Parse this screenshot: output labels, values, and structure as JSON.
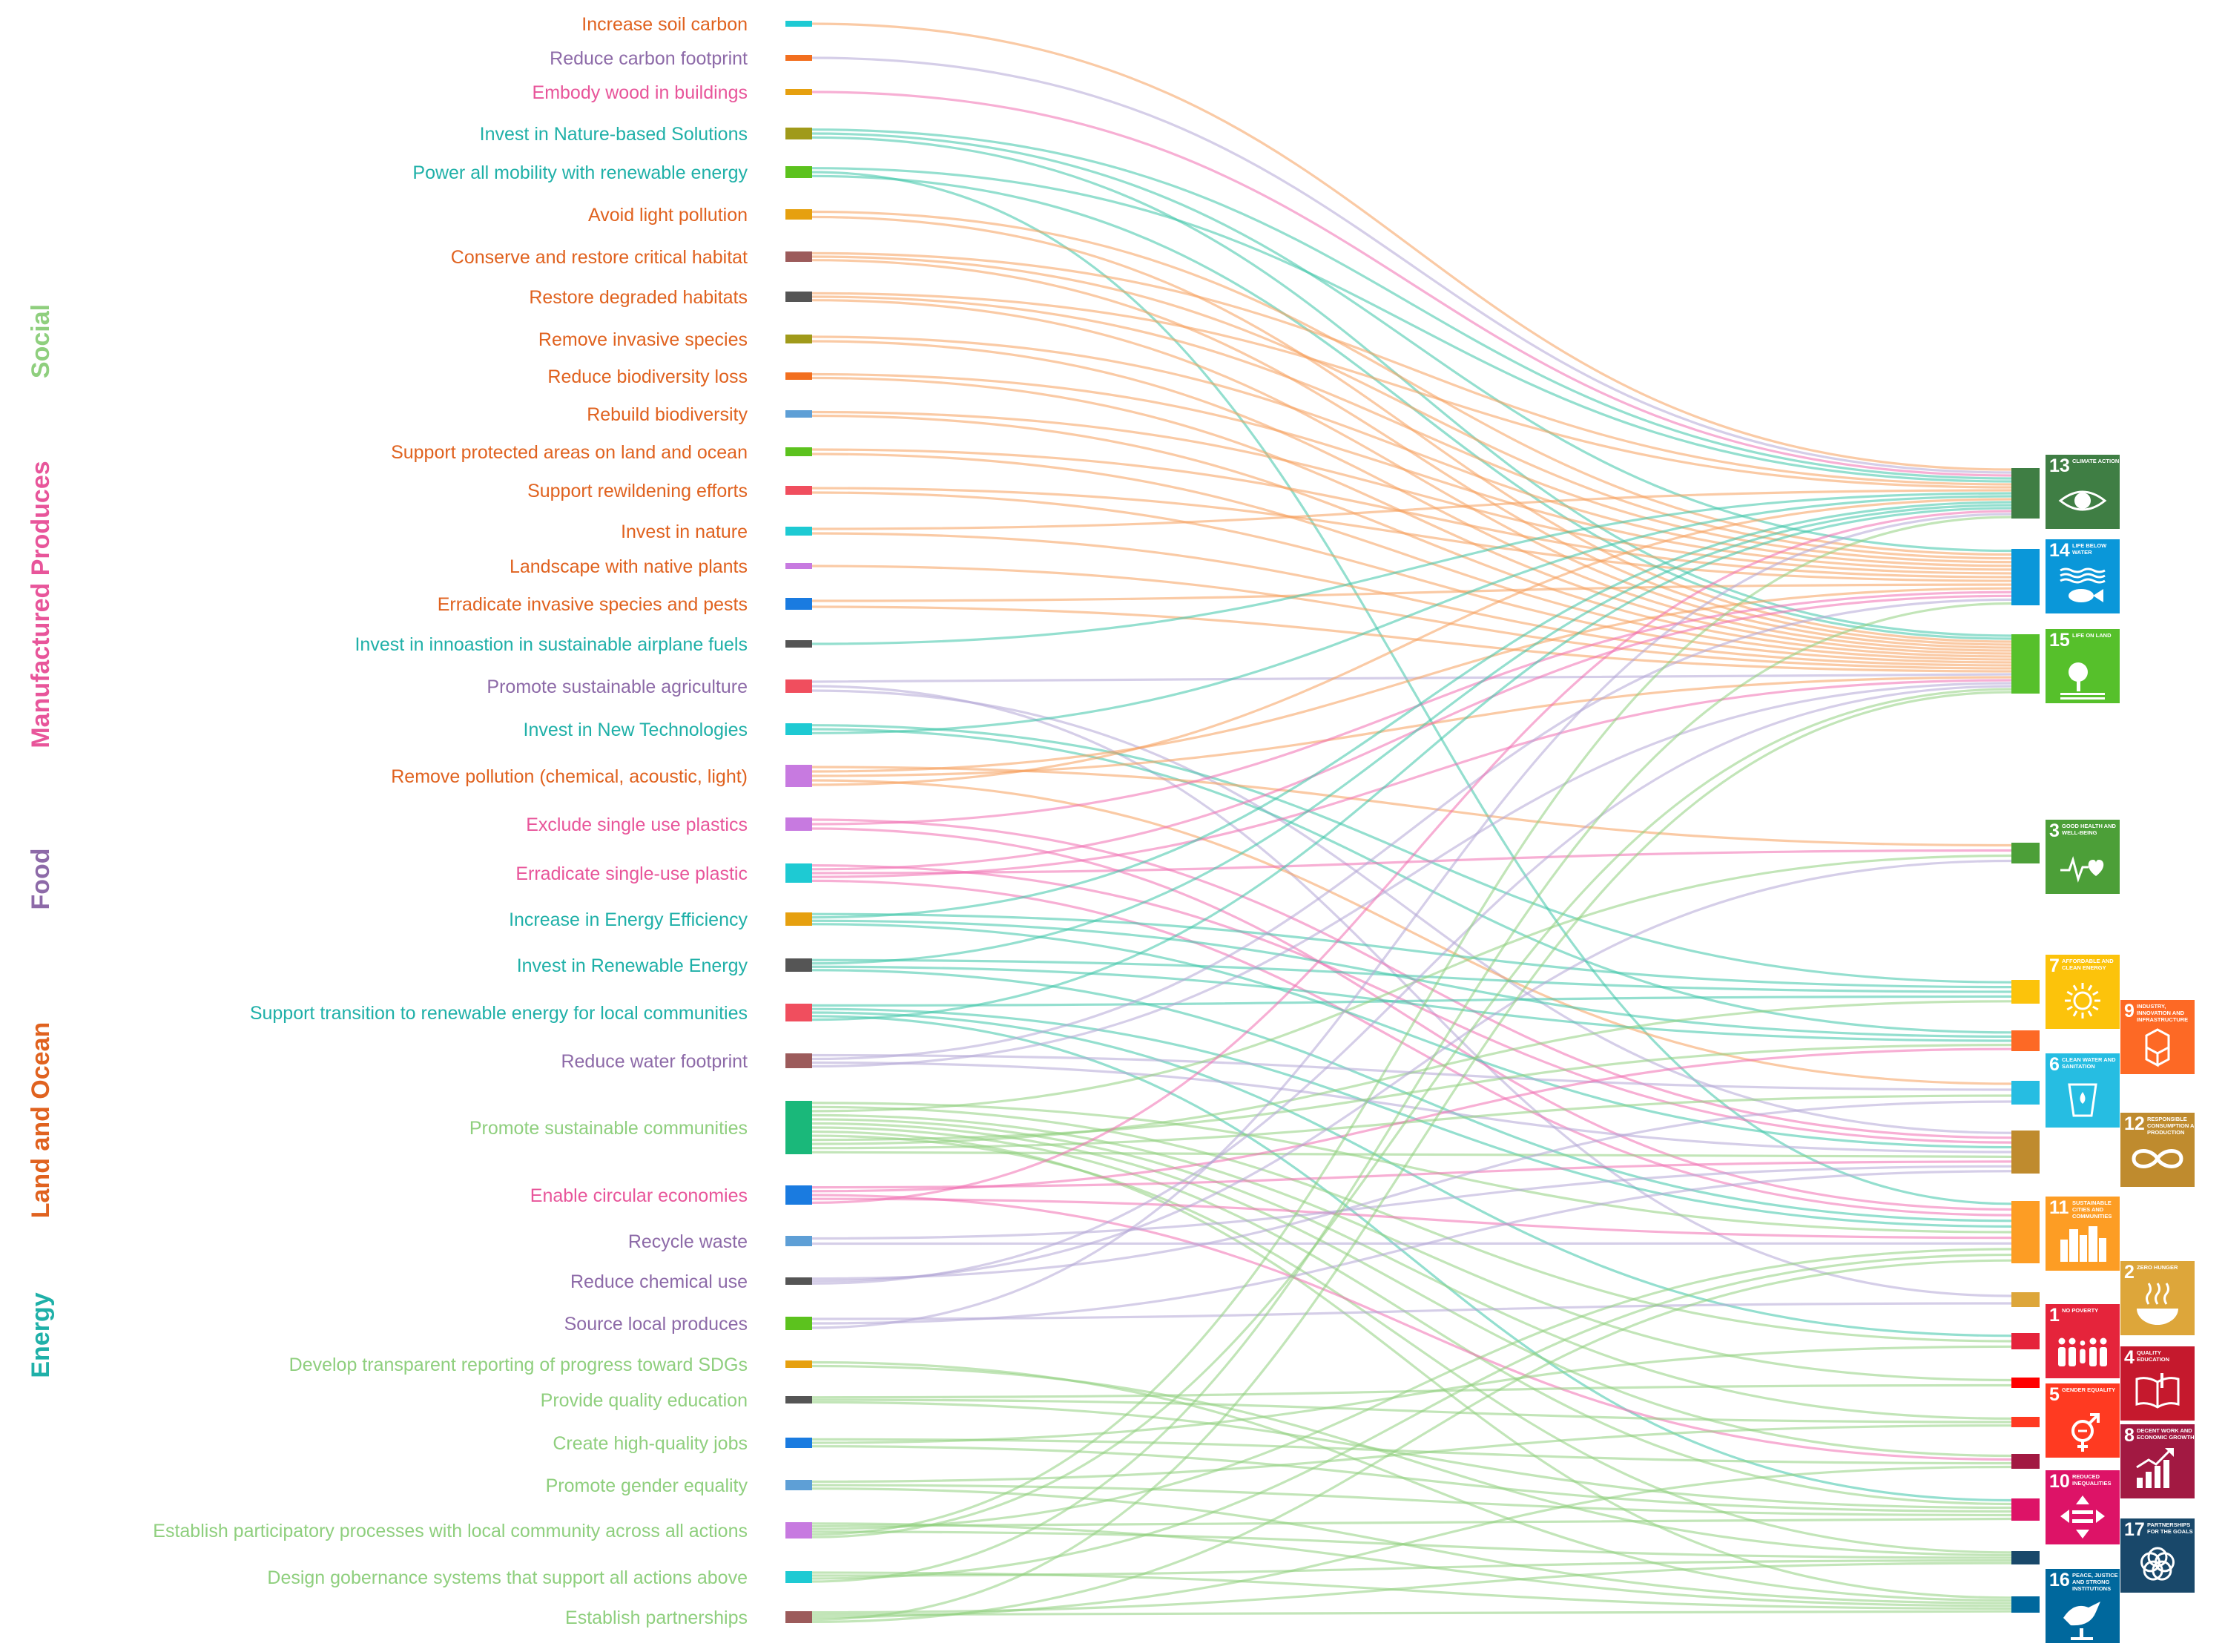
{
  "colors": {
    "Social": "#8fcf7e",
    "Manufactured Produces": "#e8559a",
    "Food": "#8d6aa8",
    "Land and Ocean": "#e0621f",
    "Energy": "#1fb0a8"
  },
  "link_colors": {
    "Social": "#8fcf7e",
    "Manufactured Produces": "#f06eb0",
    "Food": "#b3a6d6",
    "Land and Ocean": "#f59e5b",
    "Energy": "#3cc4a8"
  },
  "categories": [
    {
      "name": "Social",
      "label": "Social"
    },
    {
      "name": "Manufactured Produces",
      "label": "Manufactured Produces"
    },
    {
      "name": "Food",
      "label": "Food"
    },
    {
      "name": "Land and Ocean",
      "label": "Land and Ocean"
    },
    {
      "name": "Energy",
      "label": "Energy"
    }
  ],
  "actions": [
    {
      "label": "Increase soil carbon",
      "category": "Land and Ocean",
      "swatch": "#1ecad3",
      "targets": [
        13
      ]
    },
    {
      "label": "Reduce carbon footprint",
      "category": "Food",
      "swatch": "#f26f1f",
      "targets": [
        13
      ]
    },
    {
      "label": "Embody wood in buildings",
      "category": "Manufactured Produces",
      "swatch": "#e6a00f",
      "targets": [
        13
      ]
    },
    {
      "label": "Invest in Nature-based Solutions",
      "category": "Energy",
      "swatch": "#a09a1a",
      "targets": [
        13,
        14,
        15
      ]
    },
    {
      "label": "Power all mobility with renewable energy",
      "category": "Energy",
      "swatch": "#5cc21e",
      "targets": [
        13,
        11,
        15
      ]
    },
    {
      "label": "Avoid light pollution",
      "category": "Land and Ocean",
      "swatch": "#e6a00f",
      "targets": [
        14,
        15
      ]
    },
    {
      "label": "Conserve and restore critical habitat",
      "category": "Land and Ocean",
      "swatch": "#9c5b5b",
      "targets": [
        13,
        14,
        15
      ]
    },
    {
      "label": "Restore degraded habitats",
      "category": "Land and Ocean",
      "swatch": "#555555",
      "targets": [
        13,
        14,
        15
      ]
    },
    {
      "label": "Remove invasive species",
      "category": "Land and Ocean",
      "swatch": "#a09a1a",
      "targets": [
        14,
        15
      ]
    },
    {
      "label": "Reduce biodiversity loss",
      "category": "Land and Ocean",
      "swatch": "#f26f1f",
      "targets": [
        14,
        15
      ]
    },
    {
      "label": "Rebuild biodiversity",
      "category": "Land and Ocean",
      "swatch": "#5e9fd6",
      "targets": [
        14,
        15
      ]
    },
    {
      "label": "Support protected areas on land and ocean",
      "category": "Land and Ocean",
      "swatch": "#5cc21e",
      "targets": [
        14,
        15
      ]
    },
    {
      "label": "Support rewildening efforts",
      "category": "Land and Ocean",
      "swatch": "#f04e5e",
      "targets": [
        14,
        15
      ]
    },
    {
      "label": "Invest in nature",
      "category": "Land and Ocean",
      "swatch": "#1ecad3",
      "targets": [
        13,
        15
      ]
    },
    {
      "label": "Landscape with native plants",
      "category": "Land and Ocean",
      "swatch": "#c77ae0",
      "targets": [
        15
      ]
    },
    {
      "label": "Erradicate invasive species and pests",
      "category": "Land and Ocean",
      "swatch": "#1a7be0",
      "targets": [
        14,
        15
      ]
    },
    {
      "label": "Invest in innoastion in sustainable airplane fuels",
      "category": "Energy",
      "swatch": "#555555",
      "targets": [
        13
      ]
    },
    {
      "label": "Promote sustainable agriculture",
      "category": "Food",
      "swatch": "#f04e5e",
      "targets": [
        15,
        2,
        12
      ]
    },
    {
      "label": "Invest in New Technologies",
      "category": "Energy",
      "swatch": "#1ecad3",
      "targets": [
        7,
        9,
        13
      ]
    },
    {
      "label": "Remove pollution (chemical, acoustic, light)",
      "category": "Land and Ocean",
      "swatch": "#c77ae0",
      "targets": [
        3,
        14,
        15,
        6,
        13
      ]
    },
    {
      "label": "Exclude single use plastics",
      "category": "Manufactured Produces",
      "swatch": "#c77ae0",
      "targets": [
        12,
        14,
        11
      ]
    },
    {
      "label": "Erradicate single-use plastic",
      "category": "Manufactured Produces",
      "swatch": "#1ecad3",
      "targets": [
        12,
        14,
        3,
        15,
        11
      ]
    },
    {
      "label": "Increase in Energy Efficiency",
      "category": "Energy",
      "swatch": "#e6a00f",
      "targets": [
        7,
        13,
        9,
        12
      ]
    },
    {
      "label": "Invest in Renewable Energy",
      "category": "Energy",
      "swatch": "#555555",
      "targets": [
        7,
        13,
        9,
        11
      ]
    },
    {
      "label": "Support transition to renewable energy for local communities",
      "category": "Energy",
      "swatch": "#f04e5e",
      "targets": [
        7,
        11,
        1,
        10,
        13
      ]
    },
    {
      "label": "Reduce water footprint",
      "category": "Food",
      "swatch": "#9c5b5b",
      "targets": [
        6,
        14,
        12,
        15
      ]
    },
    {
      "label": "Promote sustainable communities",
      "category": "Social",
      "swatch": "#1ab87a",
      "targets": [
        11,
        1,
        3,
        4,
        5,
        8,
        10,
        16,
        17,
        9,
        7,
        6,
        12
      ]
    },
    {
      "label": "Enable circular economies",
      "category": "Manufactured Produces",
      "swatch": "#1a7be0",
      "targets": [
        12,
        9,
        8,
        11,
        13
      ]
    },
    {
      "label": "Recycle waste",
      "category": "Food",
      "swatch": "#5e9fd6",
      "targets": [
        12,
        11
      ]
    },
    {
      "label": "Reduce chemical use",
      "category": "Food",
      "swatch": "#555555",
      "targets": [
        6,
        3,
        15
      ]
    },
    {
      "label": "Source local produces",
      "category": "Food",
      "swatch": "#5cc21e",
      "targets": [
        2,
        12,
        13
      ]
    },
    {
      "label": "Develop transparent reporting of progress toward SDGs",
      "category": "Social",
      "swatch": "#e6a00f",
      "targets": [
        16,
        17
      ]
    },
    {
      "label": "Provide quality education",
      "category": "Social",
      "swatch": "#555555",
      "targets": [
        4,
        5,
        10
      ]
    },
    {
      "label": "Create high-quality jobs",
      "category": "Social",
      "swatch": "#1a7be0",
      "targets": [
        8,
        1,
        10
      ]
    },
    {
      "label": "Promote gender equality",
      "category": "Social",
      "swatch": "#5e9fd6",
      "targets": [
        5,
        10,
        16
      ]
    },
    {
      "label": "Establish participatory processes with local community across all actions",
      "category": "Social",
      "swatch": "#c77ae0",
      "targets": [
        16,
        10,
        11,
        17,
        13,
        15
      ]
    },
    {
      "label": "Design gobernance systems that support all actions above",
      "category": "Social",
      "swatch": "#1ecad3",
      "targets": [
        16,
        17,
        11,
        14
      ]
    },
    {
      "label": "Establish partnerships",
      "category": "Social",
      "swatch": "#9c5b5b",
      "targets": [
        17,
        16,
        8,
        15,
        11
      ]
    }
  ],
  "sdg_nodes": [
    {
      "id": 13,
      "color": "#3f7e44"
    },
    {
      "id": 14,
      "color": "#0a97d9"
    },
    {
      "id": 15,
      "color": "#56c02b"
    },
    {
      "id": 3,
      "color": "#4c9f38"
    },
    {
      "id": 7,
      "color": "#fcc30b"
    },
    {
      "id": 9,
      "color": "#fd6925"
    },
    {
      "id": 6,
      "color": "#26bde2"
    },
    {
      "id": 12,
      "color": "#bf8b2e"
    },
    {
      "id": 11,
      "color": "#fd9d24"
    },
    {
      "id": 2,
      "color": "#dda63a"
    },
    {
      "id": 1,
      "color": "#e5243b"
    },
    {
      "id": 4,
      "color": "#ff0000"
    },
    {
      "id": 5,
      "color": "#ff3a21"
    },
    {
      "id": 8,
      "color": "#a21942"
    },
    {
      "id": 10,
      "color": "#dd1367"
    },
    {
      "id": 17,
      "color": "#19486a"
    },
    {
      "id": 16,
      "color": "#00689d"
    }
  ],
  "sdg_icons": [
    {
      "id": 13,
      "number": "13",
      "title": "CLIMATE ACTION",
      "color": "#3f7e44",
      "glyph": "eye-globe-icon"
    },
    {
      "id": 14,
      "number": "14",
      "title": "LIFE BELOW WATER",
      "color": "#0a97d9",
      "glyph": "fish-icon"
    },
    {
      "id": 15,
      "number": "15",
      "title": "LIFE ON LAND",
      "color": "#56c02b",
      "glyph": "tree-icon"
    },
    {
      "id": 3,
      "number": "3",
      "title": "GOOD HEALTH AND WELL-BEING",
      "color": "#4c9f38",
      "glyph": "heartbeat-icon"
    },
    {
      "id": 7,
      "number": "7",
      "title": "AFFORDABLE AND CLEAN ENERGY",
      "color": "#fcc30b",
      "glyph": "sun-icon"
    },
    {
      "id": 9,
      "number": "9",
      "title": "INDUSTRY, INNOVATION AND INFRASTRUCTURE",
      "color": "#fd6925",
      "glyph": "cubes-icon"
    },
    {
      "id": 6,
      "number": "6",
      "title": "CLEAN WATER AND SANITATION",
      "color": "#26bde2",
      "glyph": "water-glass-icon"
    },
    {
      "id": 12,
      "number": "12",
      "title": "RESPONSIBLE CONSUMPTION AND PRODUCTION",
      "color": "#bf8b2e",
      "glyph": "infinity-icon"
    },
    {
      "id": 11,
      "number": "11",
      "title": "SUSTAINABLE CITIES AND COMMUNITIES",
      "color": "#fd9d24",
      "glyph": "city-icon"
    },
    {
      "id": 2,
      "number": "2",
      "title": "ZERO HUNGER",
      "color": "#dda63a",
      "glyph": "bowl-icon"
    },
    {
      "id": 1,
      "number": "1",
      "title": "NO POVERTY",
      "color": "#e5243b",
      "glyph": "family-icon"
    },
    {
      "id": 4,
      "number": "4",
      "title": "QUALITY EDUCATION",
      "color": "#c5192d",
      "glyph": "book-icon"
    },
    {
      "id": 5,
      "number": "5",
      "title": "GENDER EQUALITY",
      "color": "#ff3a21",
      "glyph": "gender-icon"
    },
    {
      "id": 8,
      "number": "8",
      "title": "DECENT WORK AND ECONOMIC GROWTH",
      "color": "#a21942",
      "glyph": "growth-chart-icon"
    },
    {
      "id": 10,
      "number": "10",
      "title": "REDUCED INEQUALITIES",
      "color": "#dd1367",
      "glyph": "equality-icon"
    },
    {
      "id": 17,
      "number": "17",
      "title": "PARTNERSHIPS FOR THE GOALS",
      "color": "#19486a",
      "glyph": "rings-icon"
    },
    {
      "id": 16,
      "number": "16",
      "title": "PEACE, JUSTICE AND STRONG INSTITUTIONS",
      "color": "#00689d",
      "glyph": "dove-icon"
    }
  ]
}
